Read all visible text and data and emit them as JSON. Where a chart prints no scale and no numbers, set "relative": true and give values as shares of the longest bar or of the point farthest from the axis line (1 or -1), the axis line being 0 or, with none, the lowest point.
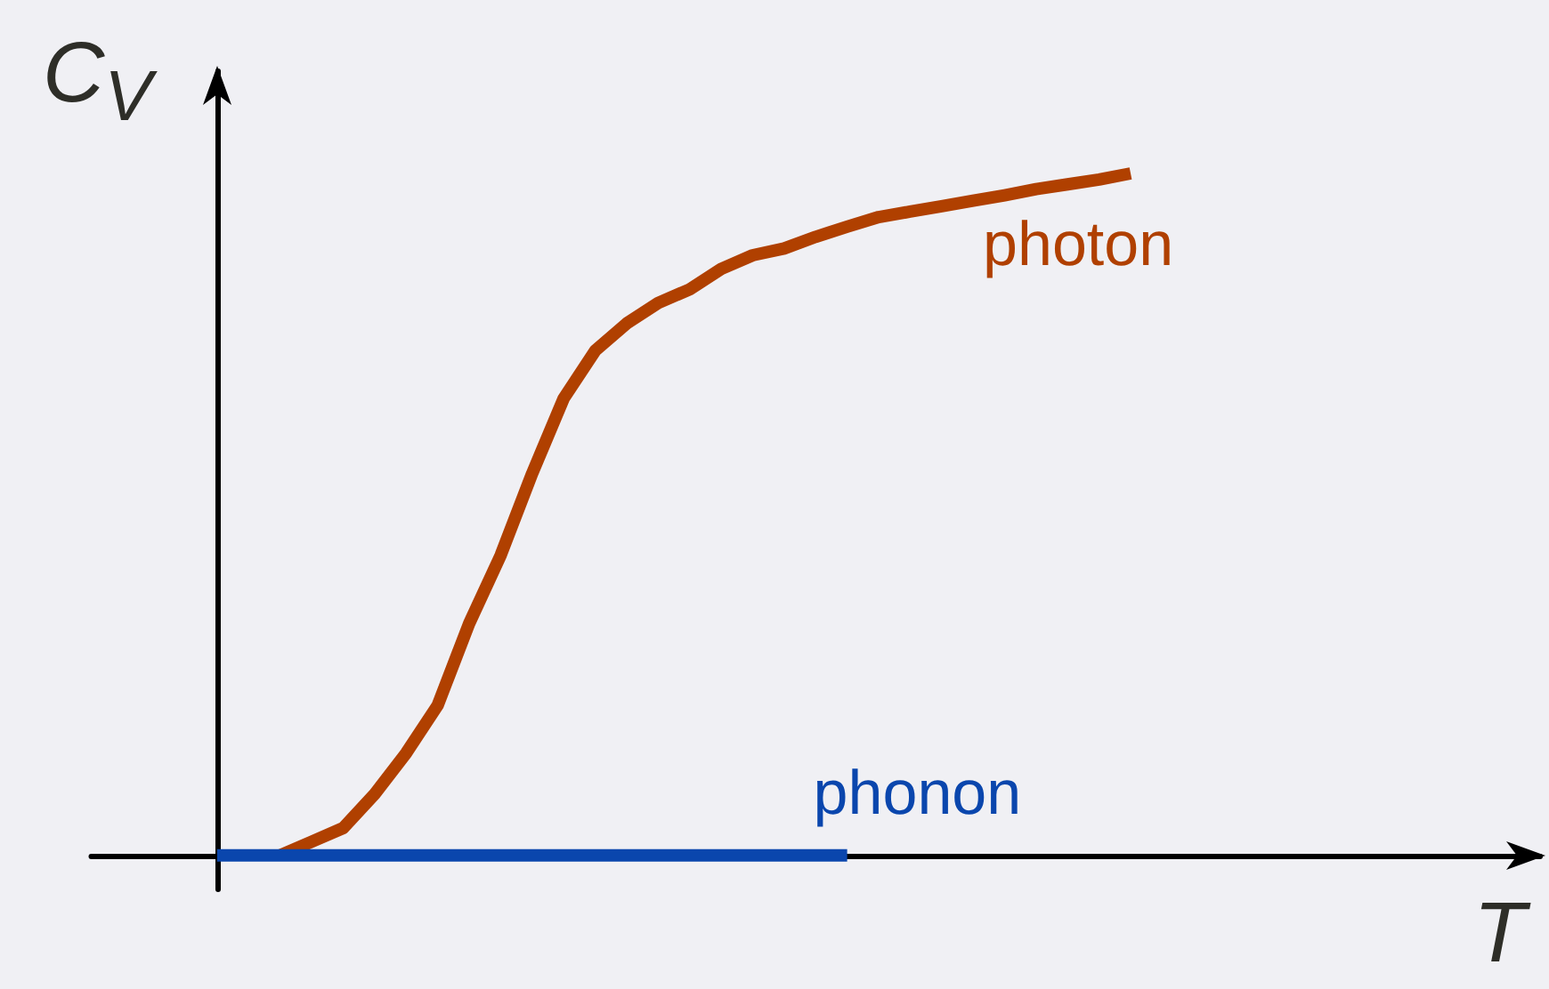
{
  "chart_data": {
    "type": "line",
    "relative": true,
    "xlabel": "T",
    "ylabel": "C$_{V}$",
    "categories": [
      null,
      null,
      null,
      null,
      null,
      null,
      null,
      null,
      null,
      null,
      null,
      null,
      null,
      null,
      null,
      null,
      null,
      null,
      null,
      null,
      null,
      null,
      null,
      null,
      null,
      null,
      null,
      null,
      null,
      null,
      null,
      null,
      null,
      null,
      null,
      null,
      null,
      null,
      null,
      null,
      null,
      null,
      null,
      null,
      null,
      null,
      null
    ],
    "series": [
      {
        "name": "photon",
        "color": "#b04000",
        "values": [
          null,
          null,
          null,
          null,
          null,
          null,
          0,
          0.02,
          0.04,
          0.09,
          0.15,
          0.22,
          0.34,
          0.44,
          0.56,
          0.67,
          0.74,
          0.78,
          0.81,
          0.83,
          0.86,
          0.88,
          0.89,
          0.907,
          0.922,
          0.936,
          0.944,
          0.952,
          0.96,
          0.968,
          0.977,
          0.984,
          0.991,
          1,
          null,
          null,
          null,
          null,
          null,
          null,
          null,
          null,
          null,
          null,
          null,
          null,
          null
        ]
      },
      {
        "name": "phonon",
        "color": "#0a46ad",
        "values": [
          null,
          null,
          null,
          null,
          0,
          0,
          0,
          0,
          0,
          0,
          0,
          0,
          0,
          0,
          0,
          0,
          0,
          0,
          0,
          0,
          0,
          0,
          0,
          0,
          0,
          null,
          null,
          null,
          null,
          null,
          null,
          null,
          null,
          null,
          null,
          null,
          null,
          null,
          null,
          null,
          null,
          null,
          null,
          null,
          null,
          null,
          null
        ]
      }
    ],
    "marker": "none"
  }
}
